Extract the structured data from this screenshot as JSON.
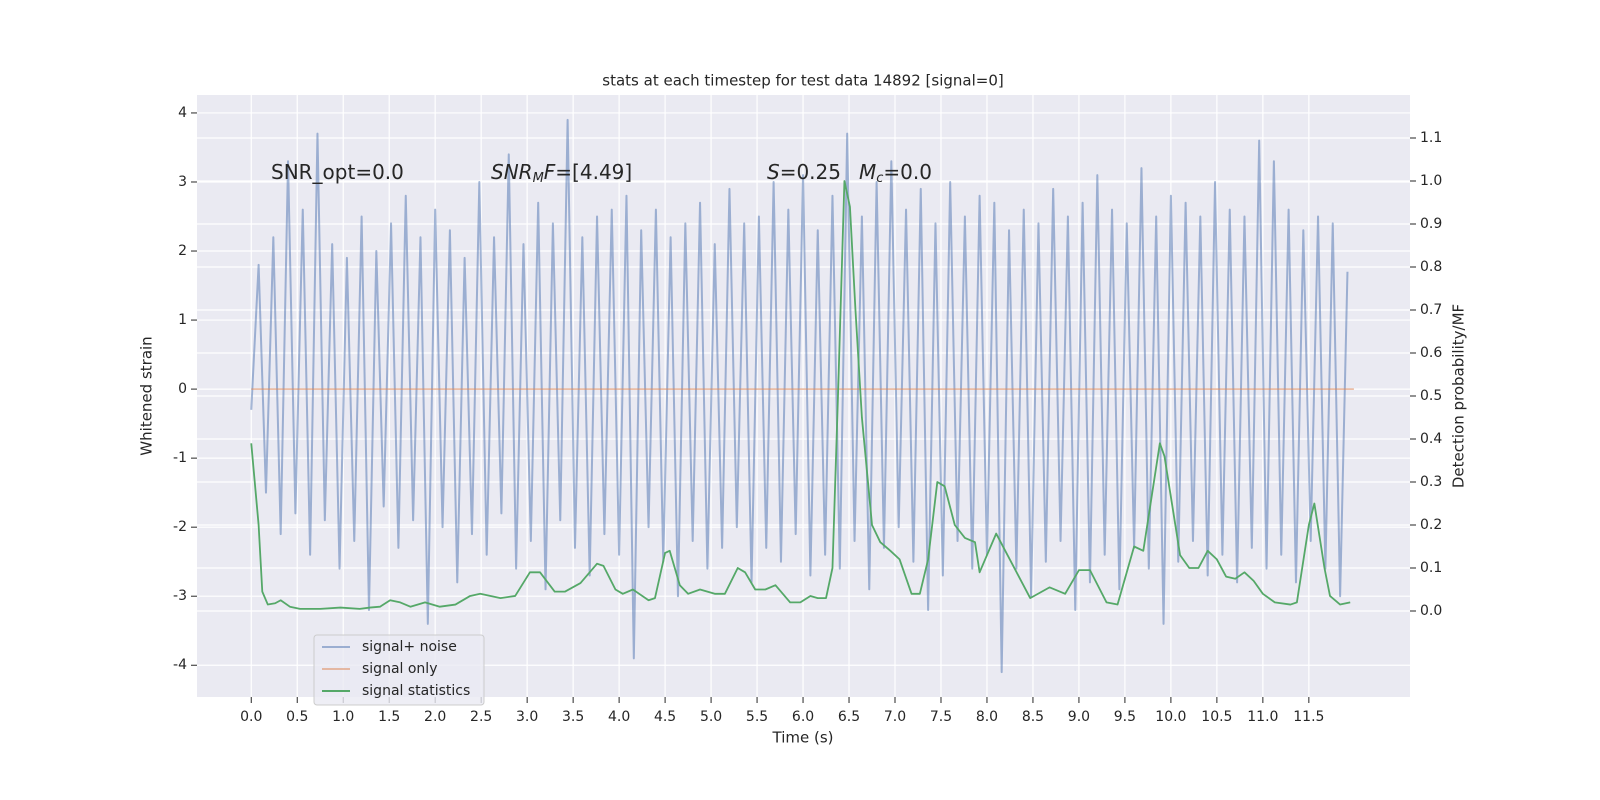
{
  "chart_data": {
    "type": "line",
    "title": "stats at each timestep for test data 14892 [signal=0]",
    "xlabel": "Time (s)",
    "ylabel": "Whitened strain",
    "y2label": "Detection probability/MF",
    "xlim": [
      -0.59,
      12.6
    ],
    "ylim": [
      -4.46,
      4.26
    ],
    "y2lim": [
      -0.2,
      1.2
    ],
    "xticks": [
      {
        "value": 0,
        "label": "0.0"
      },
      {
        "value": 0.5,
        "label": "0.5"
      },
      {
        "value": 1,
        "label": "1.0"
      },
      {
        "value": 1.5,
        "label": "1.5"
      },
      {
        "value": 2,
        "label": "2.0"
      },
      {
        "value": 2.5,
        "label": "2.5"
      },
      {
        "value": 3,
        "label": "3.0"
      },
      {
        "value": 3.5,
        "label": "3.5"
      },
      {
        "value": 4,
        "label": "4.0"
      },
      {
        "value": 4.5,
        "label": "4.5"
      },
      {
        "value": 5,
        "label": "5.0"
      },
      {
        "value": 5.5,
        "label": "5.5"
      },
      {
        "value": 6,
        "label": "6.0"
      },
      {
        "value": 6.5,
        "label": "6.5"
      },
      {
        "value": 7,
        "label": "7.0"
      },
      {
        "value": 7.5,
        "label": "7.5"
      },
      {
        "value": 8,
        "label": "8.0"
      },
      {
        "value": 8.5,
        "label": "8.5"
      },
      {
        "value": 9,
        "label": "9.0"
      },
      {
        "value": 9.5,
        "label": "9.5"
      },
      {
        "value": 10,
        "label": "10.0"
      },
      {
        "value": 10.5,
        "label": "10.5"
      },
      {
        "value": 11,
        "label": "11.0"
      },
      {
        "value": 11.5,
        "label": "11.5"
      }
    ],
    "yticks": [
      -4,
      -3,
      -2,
      -1,
      0,
      1,
      2,
      3,
      4
    ],
    "y2ticks": [
      {
        "value": 0,
        "label": "0.0"
      },
      {
        "value": 0.1,
        "label": "0.1"
      },
      {
        "value": 0.2,
        "label": "0.2"
      },
      {
        "value": 0.3,
        "label": "0.3"
      },
      {
        "value": 0.4,
        "label": "0.4"
      },
      {
        "value": 0.5,
        "label": "0.5"
      },
      {
        "value": 0.6,
        "label": "0.6"
      },
      {
        "value": 0.7,
        "label": "0.7"
      },
      {
        "value": 0.8,
        "label": "0.8"
      },
      {
        "value": 0.9,
        "label": "0.9"
      },
      {
        "value": 1,
        "label": "1.0"
      },
      {
        "value": 1.1,
        "label": "1.1"
      }
    ],
    "grid": true,
    "legend": "lower left",
    "annotations": [
      {
        "text": "SNR_opt=0.0"
      },
      {
        "italic": "SNR",
        "sub": "M",
        "italic2": "F",
        "text": "=[4.49]"
      },
      {
        "italic": "S",
        "text": "=0.25"
      },
      {
        "italic": "M",
        "sub": "c",
        "text": "=0.0"
      }
    ],
    "series": [
      {
        "name": "signal+ noise",
        "color": "#4c72b0",
        "opacity": 0.5,
        "axis": "y",
        "x": [
          0,
          0.08,
          0.16,
          0.24,
          0.32,
          0.4,
          0.48,
          0.56,
          0.64,
          0.72,
          0.8,
          0.88,
          0.96,
          1.04,
          1.12,
          1.2,
          1.28,
          1.36,
          1.44,
          1.52,
          1.6,
          1.68,
          1.76,
          1.84,
          1.92,
          2,
          2.08,
          2.16,
          2.24,
          2.32,
          2.4,
          2.48,
          2.56,
          2.64,
          2.72,
          2.8,
          2.88,
          2.96,
          3.04,
          3.12,
          3.2,
          3.28,
          3.36,
          3.44,
          3.52,
          3.6,
          3.68,
          3.76,
          3.84,
          3.92,
          4,
          4.08,
          4.16,
          4.24,
          4.32,
          4.4,
          4.48,
          4.56,
          4.64,
          4.72,
          4.8,
          4.88,
          4.96,
          5.04,
          5.12,
          5.2,
          5.28,
          5.36,
          5.44,
          5.52,
          5.6,
          5.68,
          5.76,
          5.84,
          5.92,
          6,
          6.08,
          6.16,
          6.24,
          6.32,
          6.4,
          6.48,
          6.56,
          6.64,
          6.72,
          6.8,
          6.88,
          6.96,
          7.04,
          7.12,
          7.2,
          7.28,
          7.36,
          7.44,
          7.52,
          7.6,
          7.68,
          7.76,
          7.84,
          7.92,
          8,
          8.08,
          8.16,
          8.24,
          8.32,
          8.4,
          8.48,
          8.56,
          8.64,
          8.72,
          8.8,
          8.88,
          8.96,
          9.04,
          9.12,
          9.2,
          9.28,
          9.36,
          9.44,
          9.52,
          9.6,
          9.68,
          9.76,
          9.84,
          9.92,
          10,
          10.08,
          10.16,
          10.24,
          10.32,
          10.4,
          10.48,
          10.56,
          10.64,
          10.72,
          10.8,
          10.88,
          10.96,
          11.04,
          11.12,
          11.2,
          11.28,
          11.36,
          11.44,
          11.52,
          11.6,
          11.68,
          11.76,
          11.84,
          11.92
        ],
        "values": [
          -0.3,
          1.8,
          -1.5,
          2.2,
          -2.1,
          3.3,
          -1.8,
          2.6,
          -2.4,
          3.7,
          -1.9,
          2.1,
          -2.6,
          1.9,
          -2.2,
          2.5,
          -3.2,
          2.0,
          -1.7,
          2.4,
          -2.3,
          2.8,
          -1.9,
          2.2,
          -3.4,
          2.6,
          -2.0,
          2.3,
          -2.8,
          1.9,
          -2.1,
          3.0,
          -2.4,
          2.2,
          -1.8,
          3.4,
          -2.6,
          2.1,
          -2.2,
          2.7,
          -2.9,
          2.4,
          -1.9,
          3.9,
          -2.3,
          2.2,
          -2.7,
          2.5,
          -2.1,
          2.6,
          -2.4,
          2.8,
          -3.9,
          2.3,
          -2.0,
          2.6,
          -2.5,
          2.2,
          -3.0,
          2.4,
          -2.2,
          2.7,
          -2.6,
          2.1,
          -2.3,
          2.9,
          -2.0,
          2.4,
          -2.8,
          2.5,
          -2.3,
          3.0,
          -2.5,
          2.6,
          -2.1,
          3.1,
          -2.7,
          2.3,
          -2.4,
          2.8,
          -2.6,
          3.7,
          -2.2,
          2.5,
          -2.9,
          3.0,
          -2.3,
          3.3,
          -2.0,
          2.6,
          -2.5,
          2.9,
          -3.2,
          2.4,
          -2.7,
          3.0,
          -2.2,
          2.5,
          -2.6,
          2.8,
          -2.4,
          2.7,
          -4.1,
          2.3,
          -2.6,
          2.6,
          -3.0,
          2.4,
          -2.5,
          2.9,
          -2.2,
          2.5,
          -3.2,
          2.7,
          -2.8,
          3.1,
          -2.4,
          2.6,
          -2.9,
          2.4,
          -2.3,
          3.2,
          -2.6,
          2.5,
          -3.4,
          2.8,
          -2.5,
          2.7,
          -2.2,
          2.5,
          -2.7,
          3.0,
          -2.4,
          2.6,
          -2.8,
          2.5,
          -2.3,
          3.6,
          -2.6,
          3.3,
          -2.4,
          2.6,
          -2.8,
          2.3,
          -2.2,
          2.5,
          -2.6,
          2.4,
          -3.0,
          1.7
        ]
      },
      {
        "name": "signal only",
        "color": "#dd8452",
        "opacity": 0.5,
        "axis": "y",
        "x": [
          0,
          11.99
        ],
        "values": [
          0,
          0
        ]
      },
      {
        "name": "signal statistics",
        "color": "#55a868",
        "opacity": 1,
        "axis": "y2",
        "x": [
          0,
          0.08,
          0.12,
          0.18,
          0.26,
          0.32,
          0.42,
          0.53,
          0.75,
          0.97,
          1.18,
          1.29,
          1.4,
          1.51,
          1.62,
          1.73,
          1.89,
          2.05,
          2.22,
          2.38,
          2.49,
          2.71,
          2.87,
          3.03,
          3.14,
          3.3,
          3.41,
          3.58,
          3.76,
          3.83,
          3.96,
          4.04,
          4.15,
          4.32,
          4.39,
          4.5,
          4.55,
          4.66,
          4.75,
          4.88,
          5.04,
          5.15,
          5.29,
          5.37,
          5.48,
          5.59,
          5.7,
          5.86,
          5.97,
          6.08,
          6.16,
          6.25,
          6.32,
          6.38,
          6.45,
          6.51,
          6.57,
          6.64,
          6.75,
          6.84,
          6.95,
          7.05,
          7.18,
          7.27,
          7.36,
          7.46,
          7.54,
          7.65,
          7.76,
          7.87,
          7.92,
          8.1,
          8.47,
          8.68,
          8.85,
          9.0,
          9.12,
          9.3,
          9.42,
          9.6,
          9.7,
          9.88,
          9.93,
          10.1,
          10.2,
          10.3,
          10.4,
          10.5,
          10.6,
          10.7,
          10.8,
          10.9,
          11.0,
          11.13,
          11.3,
          11.37,
          11.5,
          11.56,
          11.67,
          11.73,
          11.84,
          11.95
        ],
        "values": [
          0.39,
          0.2,
          0.045,
          0.015,
          0.018,
          0.025,
          0.01,
          0.005,
          0.005,
          0.008,
          0.005,
          0.008,
          0.01,
          0.025,
          0.02,
          0.01,
          0.02,
          0.01,
          0.015,
          0.035,
          0.04,
          0.03,
          0.035,
          0.09,
          0.09,
          0.045,
          0.045,
          0.065,
          0.11,
          0.105,
          0.05,
          0.04,
          0.05,
          0.025,
          0.03,
          0.135,
          0.14,
          0.06,
          0.04,
          0.05,
          0.04,
          0.04,
          0.1,
          0.09,
          0.05,
          0.05,
          0.06,
          0.02,
          0.02,
          0.035,
          0.03,
          0.03,
          0.1,
          0.5,
          1.0,
          0.94,
          0.7,
          0.45,
          0.2,
          0.16,
          0.14,
          0.12,
          0.04,
          0.04,
          0.12,
          0.3,
          0.29,
          0.2,
          0.17,
          0.16,
          0.09,
          0.18,
          0.03,
          0.055,
          0.04,
          0.095,
          0.095,
          0.02,
          0.015,
          0.15,
          0.14,
          0.39,
          0.36,
          0.13,
          0.1,
          0.1,
          0.14,
          0.12,
          0.08,
          0.075,
          0.09,
          0.07,
          0.04,
          0.02,
          0.015,
          0.02,
          0.2,
          0.25,
          0.1,
          0.035,
          0.015,
          0.02
        ]
      }
    ]
  }
}
